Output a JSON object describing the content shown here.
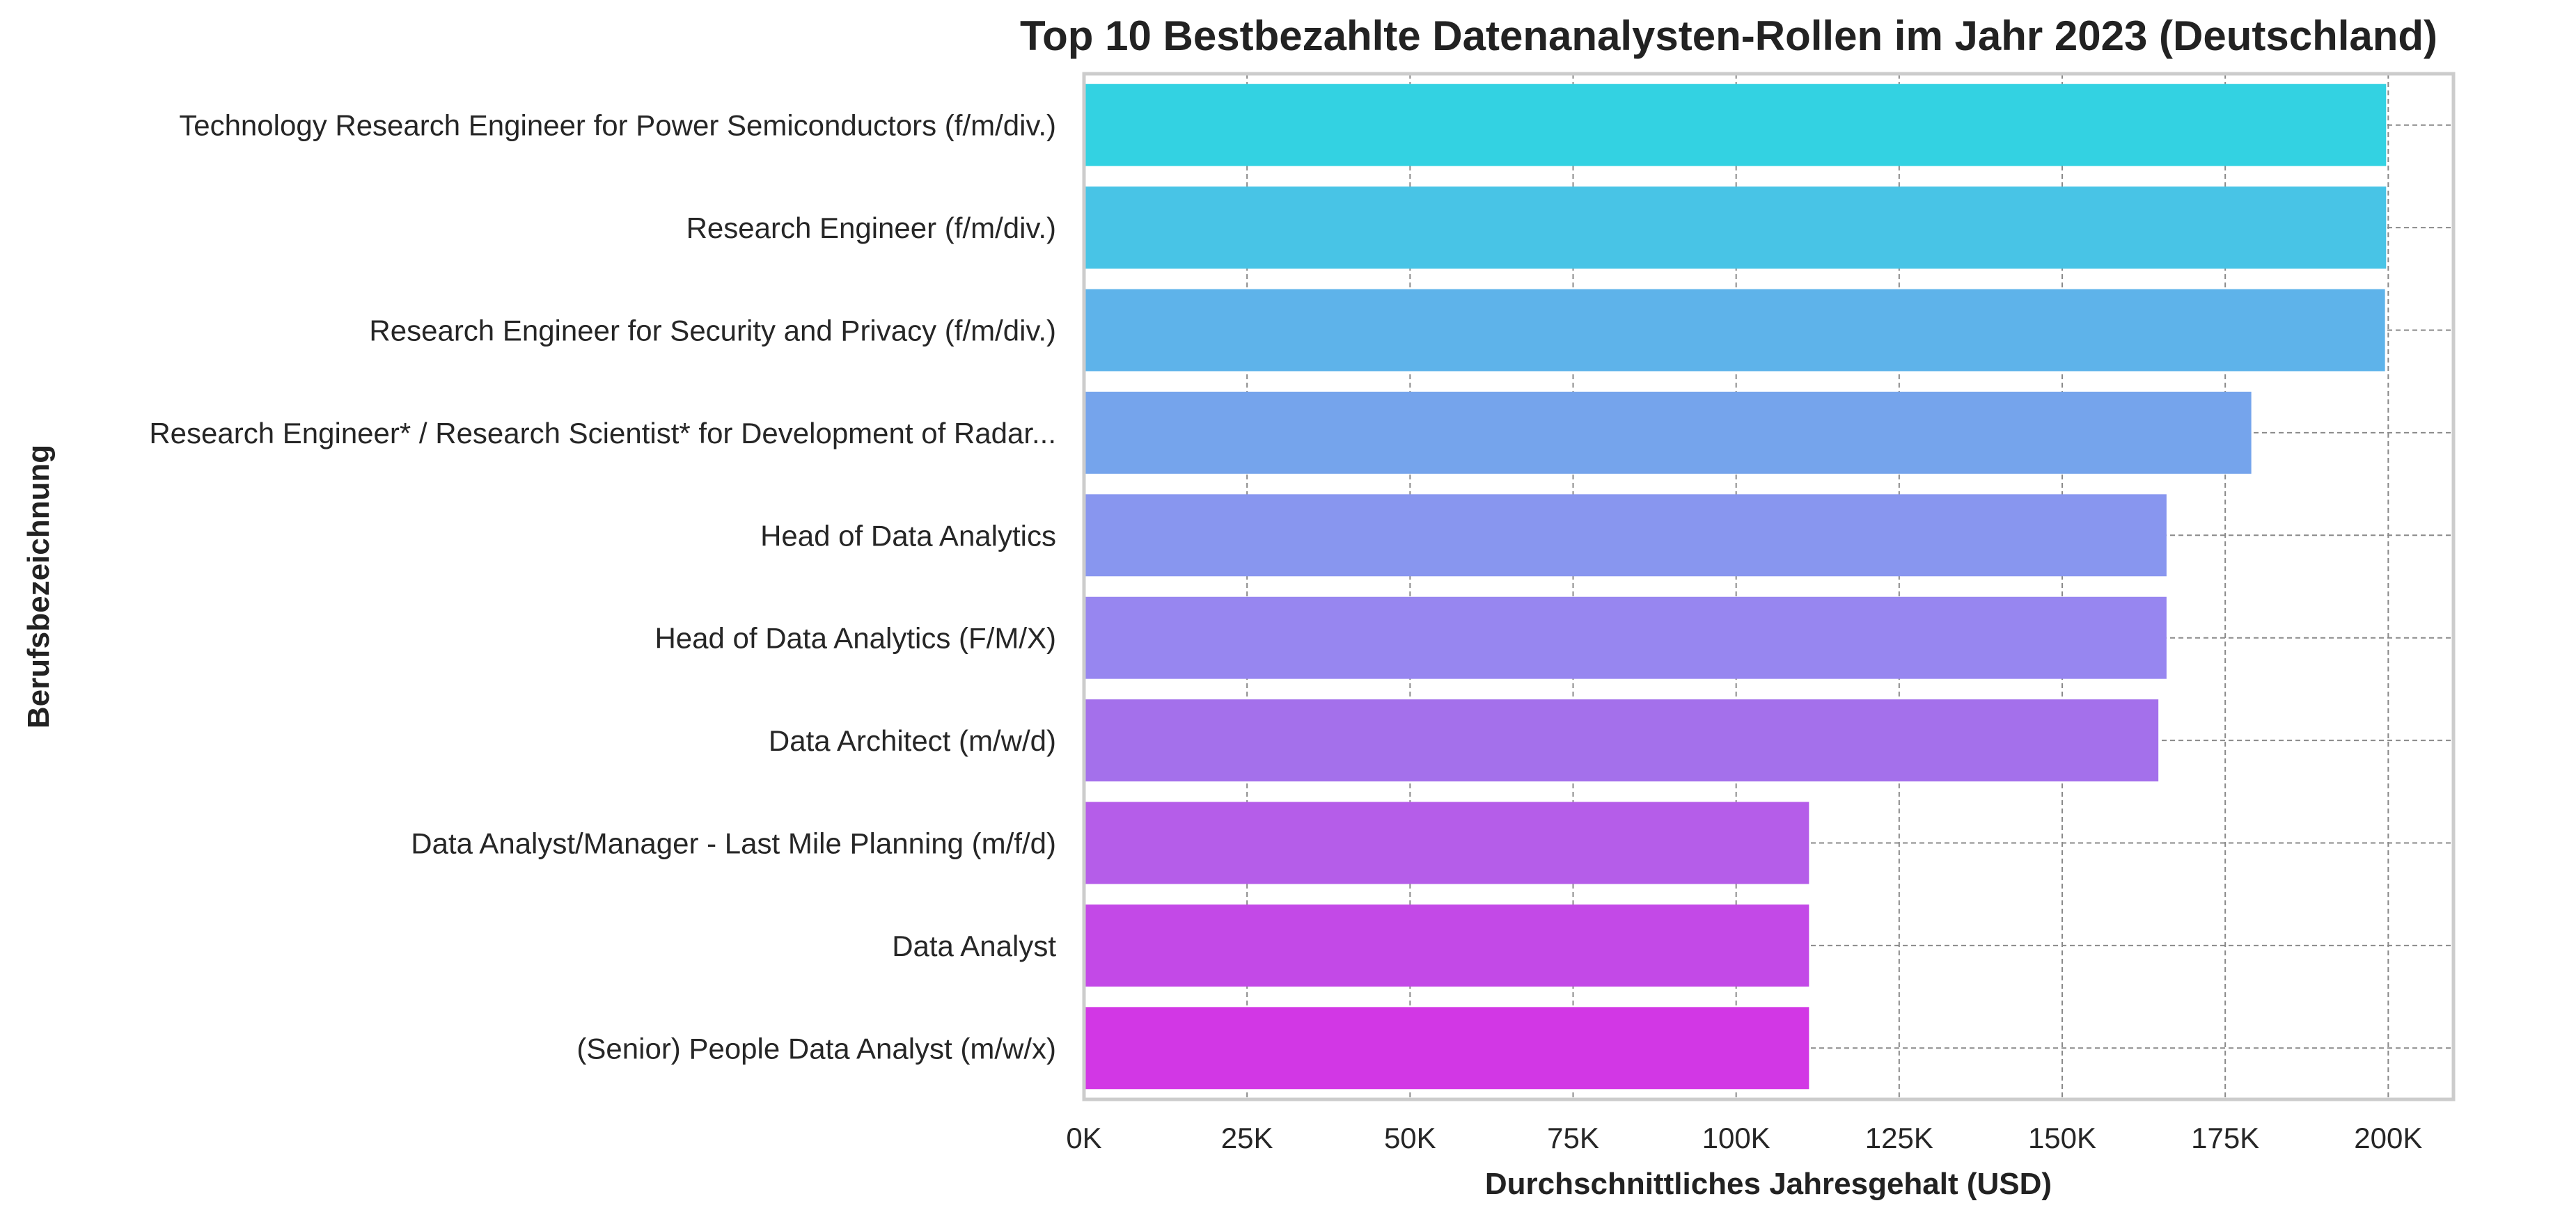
{
  "chart_data": {
    "type": "bar",
    "orientation": "horizontal",
    "title": "Top 10 Bestbezahlte Datenanalysten-Rollen im Jahr 2023 (Deutschland)",
    "xlabel": "Durchschnittliches Jahresgehalt (USD)",
    "ylabel": "Berufsbezeichnung",
    "xlim": [
      0,
      210000
    ],
    "xticks": [
      0,
      25000,
      50000,
      75000,
      100000,
      125000,
      150000,
      175000,
      200000
    ],
    "xtick_labels": [
      "0K",
      "25K",
      "50K",
      "75K",
      "100K",
      "125K",
      "150K",
      "175K",
      "200K"
    ],
    "grid": true,
    "categories": [
      "Technology Research Engineer for Power Semiconductors (f/m/div.)",
      "Research Engineer (f/m/div.)",
      "Research Engineer for Security and Privacy  (f/m/div.)",
      "Research Engineer* / Research Scientist* for Development of Radar...",
      "Head of Data Analytics",
      "Head of Data Analytics (F/M/X)",
      "Data Architect (m/w/d)",
      "Data Analyst/Manager - Last Mile Planning (m/f/d)",
      "Data Analyst",
      "(Senior) People Data Analyst (m/w/x)"
    ],
    "values": [
      199675,
      199675,
      199500,
      179000,
      166000,
      166000,
      164750,
      111175,
      111175,
      111175
    ],
    "colors": [
      "#33d2e2",
      "#48c4e6",
      "#5eb3ea",
      "#75a4ec",
      "#8896ef",
      "#9786f0",
      "#a470eb",
      "#b55de9",
      "#c349e7",
      "#d237e5"
    ]
  }
}
